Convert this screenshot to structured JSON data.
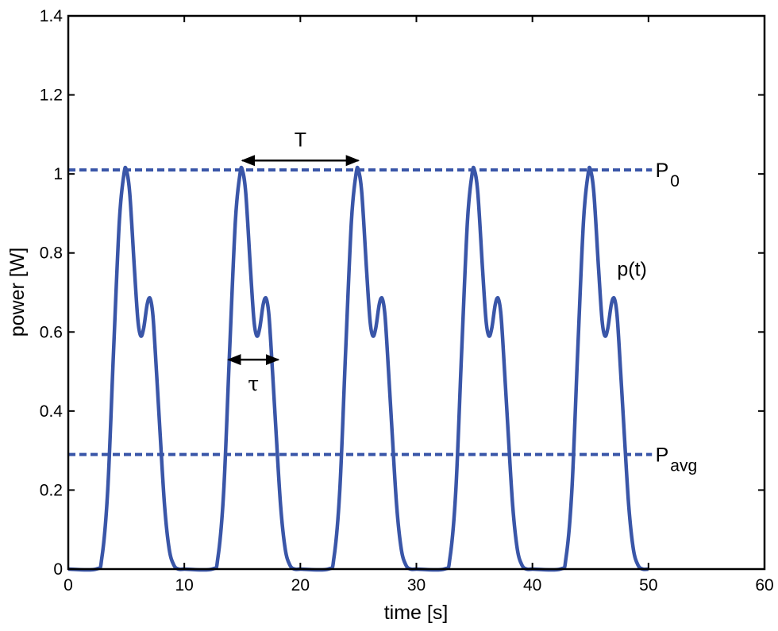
{
  "chart_data": {
    "type": "line",
    "title": "",
    "xlabel": "time [s]",
    "ylabel": "power [W]",
    "xlim": [
      0,
      60
    ],
    "ylim": [
      0,
      1.4
    ],
    "xticks": [
      0,
      10,
      20,
      30,
      40,
      50,
      60
    ],
    "yticks": [
      0,
      0.2,
      0.4,
      0.6,
      0.8,
      1,
      1.2,
      1.4
    ],
    "xtick_labels": [
      "0",
      "10",
      "20",
      "30",
      "40",
      "50",
      "60"
    ],
    "ytick_labels": [
      "0",
      "0.2",
      "0.4",
      "0.6",
      "0.8",
      "1",
      "1.2",
      "1.4"
    ],
    "grid": false,
    "colors": {
      "series": "#3a56a8",
      "annotation": "#000000"
    },
    "series": [
      {
        "name": "p(t)",
        "period": 10,
        "n_pulses": 5,
        "pulse_shape": {
          "t": [
            0,
            2.4,
            2.9,
            3.4,
            3.9,
            4.4,
            4.8,
            5.0,
            5.3,
            5.7,
            6.0,
            6.25,
            6.5,
            6.8,
            7.05,
            7.3,
            7.6,
            7.9,
            8.3,
            8.7,
            9.1,
            9.5,
            10
          ],
          "p": [
            0,
            0,
            0.03,
            0.2,
            0.55,
            0.88,
            1.0,
            1.01,
            0.95,
            0.76,
            0.63,
            0.59,
            0.61,
            0.67,
            0.685,
            0.64,
            0.5,
            0.35,
            0.16,
            0.05,
            0.01,
            0,
            0
          ]
        }
      },
      {
        "name": "P_0",
        "style": "dashed",
        "y": 1.01,
        "x": [
          0,
          50.3
        ]
      },
      {
        "name": "P_avg",
        "style": "dashed",
        "y": 0.29,
        "x": [
          0,
          50.3
        ]
      }
    ],
    "annotations": [
      {
        "text": "T",
        "type": "double-arrow",
        "x": [
          15,
          25
        ],
        "y": 1.034,
        "label_y": 1.07
      },
      {
        "text": "τ",
        "type": "double-arrow",
        "x": [
          13.8,
          18.1
        ],
        "y": 0.53,
        "label_y": 0.48
      },
      {
        "text": "P",
        "sub": "0",
        "x": 50.6,
        "y": 1.01
      },
      {
        "text": "P",
        "sub": "avg",
        "x": 50.6,
        "y": 0.29
      },
      {
        "text": "p(t)",
        "x": 47.3,
        "y": 0.76
      }
    ]
  }
}
